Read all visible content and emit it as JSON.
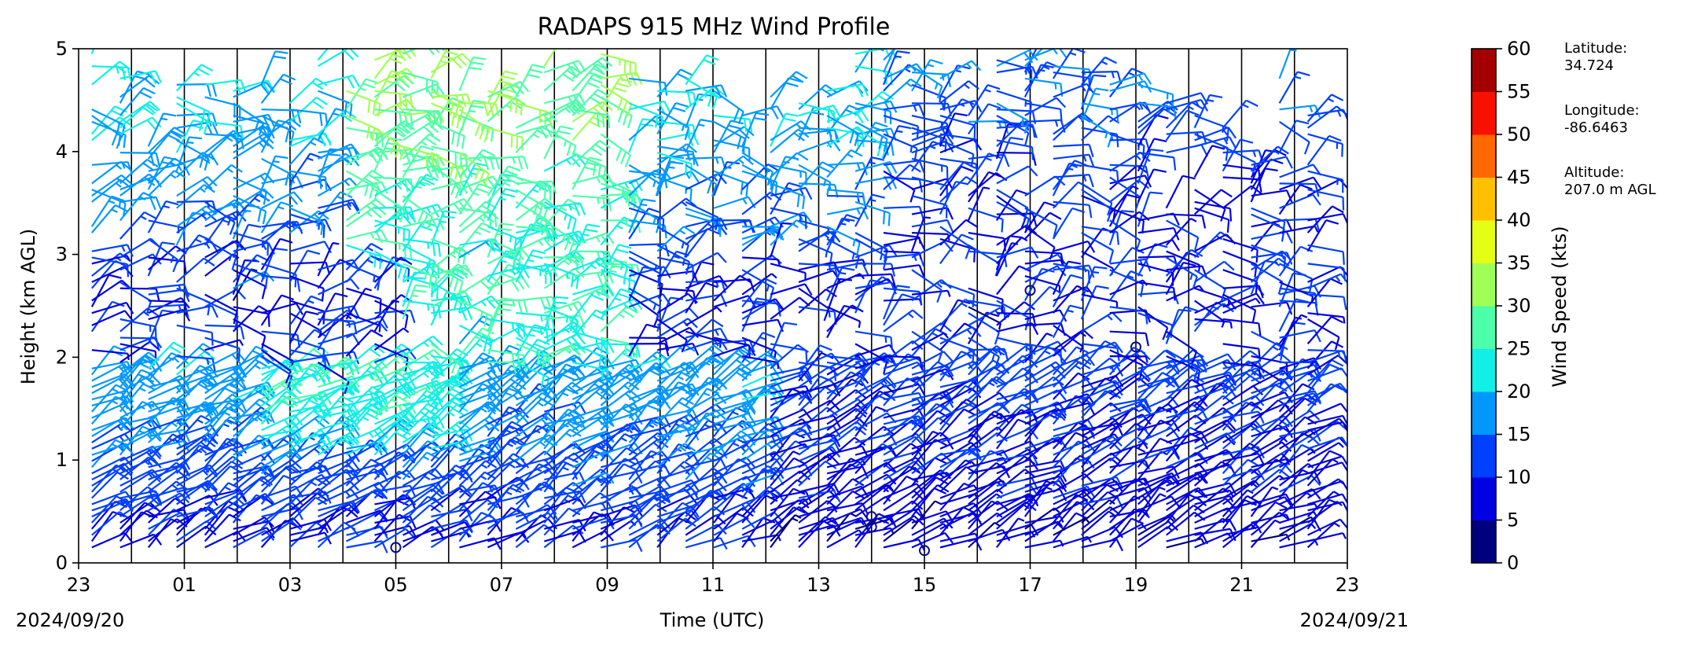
{
  "chart_data": {
    "type": "wind_barb_profile",
    "title": "RADAPS 915 MHz Wind Profile",
    "xlabel": "Time (UTC)",
    "ylabel": "Height (km AGL)",
    "x_ticks": [
      "23",
      "01",
      "03",
      "05",
      "07",
      "09",
      "11",
      "13",
      "15",
      "17",
      "19",
      "21",
      "23"
    ],
    "x_range_hours": [
      23,
      47
    ],
    "start_date": "2024/09/20",
    "end_date": "2024/09/21",
    "y_ticks": [
      0,
      1,
      2,
      3,
      4,
      5
    ],
    "ylim": [
      0,
      5
    ],
    "hour_dividers": true,
    "colorbar": {
      "label": "Wind Speed (kts)",
      "ticks": [
        0,
        5,
        10,
        15,
        20,
        25,
        30,
        35,
        40,
        45,
        50,
        55,
        60
      ],
      "colors": [
        "#00007f",
        "#0000e0",
        "#0040ff",
        "#0098ff",
        "#10f0e6",
        "#4cffaa",
        "#a0ff56",
        "#e4ff13",
        "#ffc000",
        "#ff6800",
        "#f81000",
        "#a40000"
      ]
    },
    "station": {
      "latitude_label": "Latitude:",
      "latitude": "34.724",
      "longitude_label": "Longitude:",
      "longitude": "-86.6463",
      "altitude_label": "Altitude:",
      "altitude": "207.0 m AGL"
    },
    "profile_level_ranges_km": [
      [
        0.15,
        4.95
      ],
      [
        0.15,
        4.75
      ],
      [
        0.15,
        4.45
      ],
      [
        0.15,
        4.7
      ],
      [
        0.15,
        4.7
      ],
      [
        0.15,
        4.7
      ],
      [
        0.15,
        4.7
      ],
      [
        0.15,
        4.5
      ],
      [
        0.15,
        5.0
      ],
      [
        0.15,
        4.6
      ],
      [
        0.15,
        4.9
      ],
      [
        0.15,
        5.0
      ],
      [
        0.15,
        4.85
      ],
      [
        0.15,
        4.6
      ],
      [
        0.15,
        4.6
      ],
      [
        0.15,
        4.7
      ],
      [
        0.15,
        4.9
      ],
      [
        0.15,
        4.8
      ],
      [
        0.15,
        4.95
      ],
      [
        0.15,
        4.85
      ],
      [
        0.15,
        4.7
      ],
      [
        0.15,
        4.8
      ],
      [
        0.15,
        4.6
      ],
      [
        0.15,
        4.4
      ],
      [
        0.15,
        4.55
      ],
      [
        0.15,
        4.6
      ],
      [
        0.15,
        4.6
      ],
      [
        0.15,
        4.95
      ],
      [
        0.15,
        4.9
      ],
      [
        0.15,
        4.85
      ],
      [
        0.15,
        4.75
      ],
      [
        0.15,
        4.5
      ],
      [
        0.15,
        4.95
      ],
      [
        0.15,
        4.95
      ],
      [
        0.15,
        4.95
      ],
      [
        0.15,
        4.95
      ],
      [
        0.15,
        4.8
      ],
      [
        0.15,
        4.7
      ],
      [
        0.15,
        4.7
      ],
      [
        0.15,
        4.4
      ],
      [
        0.15,
        4.4
      ],
      [
        0.15,
        4.4
      ],
      [
        0.15,
        4.8
      ],
      [
        0.15,
        4.4
      ]
    ],
    "calm_markers": [
      {
        "hour": 29.0,
        "km": 0.15
      },
      {
        "hour": 38.0,
        "km": 0.45
      },
      {
        "hour": 38.0,
        "km": 0.35
      },
      {
        "hour": 39.0,
        "km": 0.12
      },
      {
        "hour": 41.0,
        "km": 2.65
      },
      {
        "hour": 43.0,
        "km": 2.1
      }
    ]
  }
}
